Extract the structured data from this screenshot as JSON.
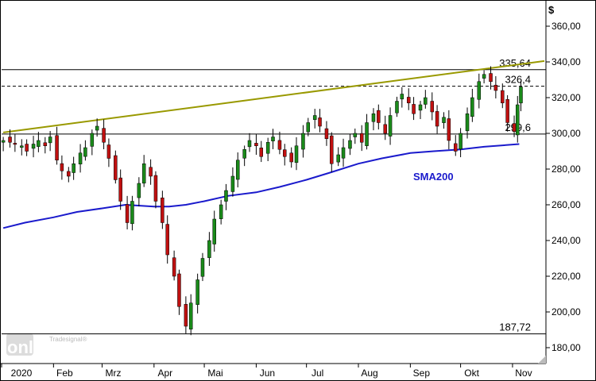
{
  "chart_data": {
    "type": "candlestick",
    "currency_label": "$",
    "y_ticks": [
      "360,00",
      "340,00",
      "320,00",
      "300,00",
      "280,00",
      "260,00",
      "240,00",
      "220,00",
      "200,00",
      "180,00"
    ],
    "y_tick_values": [
      360,
      340,
      320,
      300,
      280,
      260,
      240,
      220,
      200,
      180
    ],
    "ylim": [
      172,
      372
    ],
    "x_labels": [
      "2020",
      "Feb",
      "Mrz",
      "Apr",
      "Mai",
      "Jun",
      "Jul",
      "Aug",
      "Sep",
      "Okt",
      "Nov"
    ],
    "grid": false,
    "levels": [
      {
        "label": "335,64",
        "value": 335.64,
        "style": "solid"
      },
      {
        "label": "326,4",
        "value": 326.4,
        "style": "dashed"
      },
      {
        "label": "299,6",
        "value": 299.6,
        "style": "solid"
      },
      {
        "label": "187,72",
        "value": 187.72,
        "style": "solid"
      }
    ],
    "trendline": {
      "from": {
        "date": "2020-01-02",
        "value": 300.5
      },
      "to": {
        "date": "2020-11-06",
        "value": 340.5
      },
      "color": "#999900"
    },
    "sma": {
      "label": "SMA200",
      "color": "#1a1acc",
      "points": [
        [
          "2020-01-02",
          247
        ],
        [
          "2020-01-15",
          250
        ],
        [
          "2020-02-01",
          253
        ],
        [
          "2020-02-15",
          256
        ],
        [
          "2020-03-01",
          258
        ],
        [
          "2020-03-15",
          260
        ],
        [
          "2020-04-01",
          259
        ],
        [
          "2020-04-10",
          259
        ],
        [
          "2020-04-20",
          260
        ],
        [
          "2020-05-01",
          262
        ],
        [
          "2020-05-15",
          265
        ],
        [
          "2020-06-01",
          267
        ],
        [
          "2020-06-15",
          270
        ],
        [
          "2020-07-01",
          274
        ],
        [
          "2020-07-15",
          278
        ],
        [
          "2020-08-01",
          283
        ],
        [
          "2020-08-15",
          286
        ],
        [
          "2020-09-01",
          289
        ],
        [
          "2020-09-15",
          290
        ],
        [
          "2020-10-01",
          291
        ],
        [
          "2020-10-15",
          292.5
        ],
        [
          "2020-11-05",
          294
        ]
      ]
    },
    "series": [
      {
        "name": "price",
        "closes": [
          [
            "2020-01-02",
            296
          ],
          [
            "2020-01-06",
            295
          ],
          [
            "2020-01-09",
            294
          ],
          [
            "2020-01-13",
            293
          ],
          [
            "2020-01-16",
            290
          ],
          [
            "2020-01-20",
            294
          ],
          [
            "2020-01-23",
            296
          ],
          [
            "2020-01-27",
            293
          ],
          [
            "2020-01-30",
            298
          ],
          [
            "2020-02-03",
            285
          ],
          [
            "2020-02-06",
            279
          ],
          [
            "2020-02-10",
            276
          ],
          [
            "2020-02-13",
            283
          ],
          [
            "2020-02-17",
            289
          ],
          [
            "2020-02-20",
            292
          ],
          [
            "2020-02-24",
            300
          ],
          [
            "2020-02-27",
            304
          ],
          [
            "2020-03-02",
            295
          ],
          [
            "2020-03-05",
            286
          ],
          [
            "2020-03-09",
            274
          ],
          [
            "2020-03-12",
            262
          ],
          [
            "2020-03-16",
            250
          ],
          [
            "2020-03-19",
            262
          ],
          [
            "2020-03-23",
            272
          ],
          [
            "2020-03-26",
            283
          ],
          [
            "2020-03-30",
            276
          ],
          [
            "2020-04-02",
            262
          ],
          [
            "2020-04-06",
            250
          ],
          [
            "2020-04-09",
            232
          ],
          [
            "2020-04-13",
            220
          ],
          [
            "2020-04-16",
            203
          ],
          [
            "2020-04-20",
            192
          ],
          [
            "2020-04-23",
            205
          ],
          [
            "2020-04-27",
            218
          ],
          [
            "2020-04-30",
            230
          ],
          [
            "2020-05-04",
            240
          ],
          [
            "2020-05-07",
            252
          ],
          [
            "2020-05-11",
            260
          ],
          [
            "2020-05-14",
            268
          ],
          [
            "2020-05-18",
            276
          ],
          [
            "2020-05-21",
            285
          ],
          [
            "2020-05-25",
            291
          ],
          [
            "2020-05-28",
            296
          ],
          [
            "2020-06-01",
            293
          ],
          [
            "2020-06-04",
            287
          ],
          [
            "2020-06-08",
            295
          ],
          [
            "2020-06-11",
            298
          ],
          [
            "2020-06-15",
            291
          ],
          [
            "2020-06-18",
            287
          ],
          [
            "2020-06-22",
            284
          ],
          [
            "2020-06-25",
            293
          ],
          [
            "2020-06-29",
            300
          ],
          [
            "2020-07-02",
            306
          ],
          [
            "2020-07-06",
            310
          ],
          [
            "2020-07-09",
            304
          ],
          [
            "2020-07-13",
            297
          ],
          [
            "2020-07-16",
            283
          ],
          [
            "2020-07-20",
            288
          ],
          [
            "2020-07-23",
            292
          ],
          [
            "2020-07-27",
            296
          ],
          [
            "2020-07-30",
            300
          ],
          [
            "2020-08-03",
            295
          ],
          [
            "2020-08-06",
            306
          ],
          [
            "2020-08-10",
            311
          ],
          [
            "2020-08-13",
            306
          ],
          [
            "2020-08-17",
            300
          ],
          [
            "2020-08-20",
            310
          ],
          [
            "2020-08-24",
            318
          ],
          [
            "2020-08-27",
            322
          ],
          [
            "2020-08-31",
            317
          ],
          [
            "2020-09-03",
            311
          ],
          [
            "2020-09-07",
            316
          ],
          [
            "2020-09-10",
            320
          ],
          [
            "2020-09-14",
            312
          ],
          [
            "2020-09-17",
            304
          ],
          [
            "2020-09-21",
            309
          ],
          [
            "2020-09-24",
            296
          ],
          [
            "2020-09-28",
            290
          ],
          [
            "2020-10-01",
            300
          ],
          [
            "2020-10-05",
            311
          ],
          [
            "2020-10-08",
            320
          ],
          [
            "2020-10-12",
            329
          ],
          [
            "2020-10-15",
            333
          ],
          [
            "2020-10-19",
            329
          ],
          [
            "2020-10-22",
            324
          ],
          [
            "2020-10-26",
            317
          ],
          [
            "2020-10-29",
            306
          ],
          [
            "2020-11-02",
            301
          ],
          [
            "2020-11-04",
            316
          ],
          [
            "2020-11-06",
            326
          ]
        ]
      }
    ]
  },
  "watermark": {
    "small": "Tradesignal®",
    "big": "online"
  }
}
